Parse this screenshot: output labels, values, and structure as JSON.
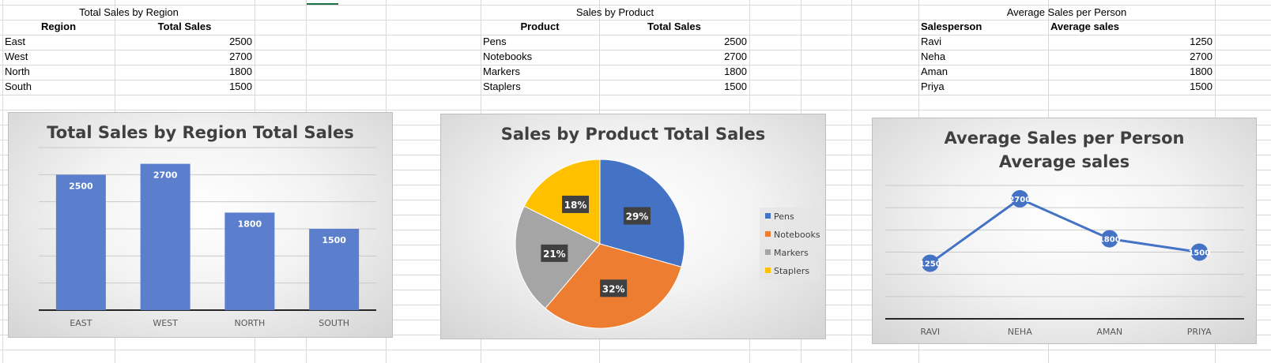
{
  "tables": {
    "region": {
      "caption": "Total Sales by Region",
      "headers": [
        "Region",
        "Total Sales"
      ],
      "rows": [
        [
          "East",
          "2500"
        ],
        [
          "West",
          "2700"
        ],
        [
          "North",
          "1800"
        ],
        [
          "South",
          "1500"
        ]
      ]
    },
    "product": {
      "caption": "Sales by Product",
      "headers": [
        "Product",
        "Total Sales"
      ],
      "rows": [
        [
          "Pens",
          "2500"
        ],
        [
          "Notebooks",
          "2700"
        ],
        [
          "Markers",
          "1800"
        ],
        [
          "Staplers",
          "1500"
        ]
      ]
    },
    "person": {
      "caption": "Average Sales per Person",
      "headers": [
        "Salesperson",
        "Average sales"
      ],
      "rows": [
        [
          "Ravi",
          "1250"
        ],
        [
          "Neha",
          "2700"
        ],
        [
          "Aman",
          "1800"
        ],
        [
          "Priya",
          "1500"
        ]
      ]
    }
  },
  "chart_data": [
    {
      "type": "bar",
      "title": "Total Sales by Region Total Sales",
      "categories": [
        "EAST",
        "WEST",
        "NORTH",
        "SOUTH"
      ],
      "values": [
        2500,
        2700,
        1800,
        1500
      ],
      "data_labels": [
        "2500",
        "2700",
        "1800",
        "1500"
      ],
      "ylim": [
        0,
        3000
      ],
      "grid": true,
      "color": "#5b7fcc"
    },
    {
      "type": "pie",
      "title": "Sales by Product Total Sales",
      "categories": [
        "Pens",
        "Notebooks",
        "Markers",
        "Staplers"
      ],
      "values": [
        2500,
        2700,
        1800,
        1500
      ],
      "data_labels": [
        "29%",
        "32%",
        "21%",
        "18%"
      ],
      "colors": [
        "#4472c4",
        "#ed7d31",
        "#a5a5a5",
        "#ffc000"
      ],
      "legend": "right"
    },
    {
      "type": "line",
      "title": "Average Sales per Person Average sales",
      "categories": [
        "RAVI",
        "NEHA",
        "AMAN",
        "PRIYA"
      ],
      "values": [
        1250,
        2700,
        1800,
        1500
      ],
      "data_labels": [
        "1250",
        "2700",
        "1800",
        "1500"
      ],
      "ylim": [
        0,
        3000
      ],
      "grid": true,
      "color": "#4472c4"
    }
  ]
}
